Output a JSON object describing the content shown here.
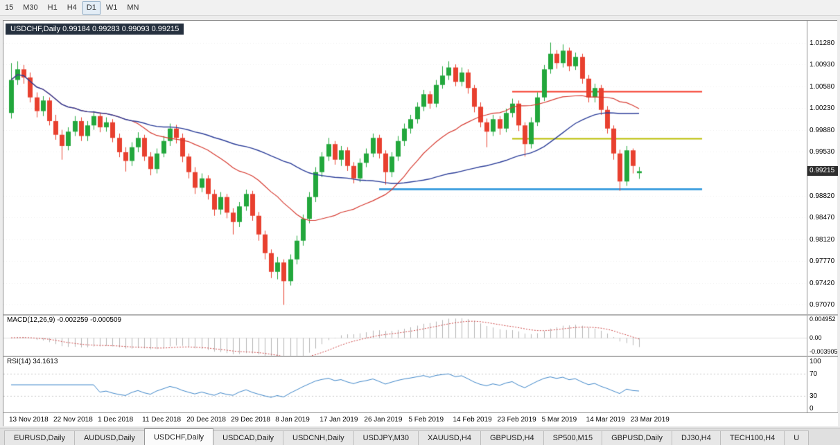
{
  "toolbar": {
    "timeframes": [
      {
        "label": "15",
        "active": false
      },
      {
        "label": "M30",
        "active": false
      },
      {
        "label": "H1",
        "active": false
      },
      {
        "label": "H4",
        "active": false
      },
      {
        "label": "D1",
        "active": true
      },
      {
        "label": "W1",
        "active": false
      },
      {
        "label": "MN",
        "active": false
      }
    ]
  },
  "chart": {
    "title": "USDCHF,Daily  0.99184 0.99283 0.99093 0.99215",
    "price_badge": "0.99215",
    "price_axis": [
      "1.01280",
      "1.00930",
      "1.00580",
      "1.00230",
      "0.99880",
      "0.99530",
      "0.98820",
      "0.98470",
      "0.98120",
      "0.97770",
      "0.97420",
      "0.97070"
    ]
  },
  "macd": {
    "label": "MACD(12,26,9) -0.002259 -0.000509",
    "values": [
      "-0.002259",
      "-0.000509"
    ],
    "axis": [
      {
        "label": "0.004952",
        "value": 0.004952
      },
      {
        "label": "0.00",
        "value": 0
      },
      {
        "label": "-0.003905",
        "value": -0.0039
      }
    ]
  },
  "rsi": {
    "label": "RSI(14) 34.1613",
    "value": "34.1613",
    "axis": [
      {
        "label": "100",
        "value": 100
      },
      {
        "label": "70",
        "value": 70
      },
      {
        "label": "30",
        "value": 30
      },
      {
        "label": "0",
        "value": 0
      }
    ]
  },
  "time_axis": [
    "13 Nov 2018",
    "22 Nov 2018",
    "1 Dec 2018",
    "11 Dec 2018",
    "20 Dec 2018",
    "29 Dec 2018",
    "8 Jan 2019",
    "17 Jan 2019",
    "26 Jan 2019",
    "5 Feb 2019",
    "14 Feb 2019",
    "23 Feb 2019",
    "5 Mar 2019",
    "14 Mar 2019",
    "23 Mar 2019"
  ],
  "tabs": [
    {
      "label": "EURUSD,Daily",
      "active": false
    },
    {
      "label": "AUDUSD,Daily",
      "active": false
    },
    {
      "label": "USDCHF,Daily",
      "active": true
    },
    {
      "label": "USDCAD,Daily",
      "active": false
    },
    {
      "label": "USDCNH,Daily",
      "active": false
    },
    {
      "label": "USDJPY,M30",
      "active": false
    },
    {
      "label": "XAUUSD,H4",
      "active": false
    },
    {
      "label": "GBPUSD,H4",
      "active": false
    },
    {
      "label": "SP500,M15",
      "active": false
    },
    {
      "label": "GBPUSD,Daily",
      "active": false
    },
    {
      "label": "DJ30,H4",
      "active": false
    },
    {
      "label": "TECH100,H4",
      "active": false
    },
    {
      "label": "U",
      "active": false
    }
  ],
  "chart_data": {
    "type": "candlestick",
    "symbol": "USDCHF",
    "timeframe": "Daily",
    "price_range": [
      0.9692,
      1.0163
    ],
    "date_labels_every": 7,
    "candles": [
      [
        1.0015,
        1.0095,
        1.0006,
        1.0068
      ],
      [
        1.0068,
        1.0098,
        1.006,
        1.0085
      ],
      [
        1.0085,
        1.0092,
        1.0062,
        1.0072
      ],
      [
        1.0072,
        1.008,
        1.0032,
        1.004
      ],
      [
        1.004,
        1.0048,
        1.0008,
        1.0018
      ],
      [
        1.0018,
        1.0042,
        1.001,
        1.0035
      ],
      [
        1.0035,
        1.004,
        0.9995,
        1.0002
      ],
      [
        1.0002,
        1.0012,
        0.9972,
        0.998
      ],
      [
        0.998,
        0.9988,
        0.994,
        0.9962
      ],
      [
        0.9962,
        0.9992,
        0.9955,
        0.9985
      ],
      [
        0.9985,
        1.001,
        0.9978,
        1.0002
      ],
      [
        1.0002,
        1.0008,
        0.997,
        0.9978
      ],
      [
        0.9978,
        1.0002,
        0.997,
        0.9995
      ],
      [
        0.9995,
        1.0018,
        0.9988,
        1.001
      ],
      [
        1.001,
        1.0016,
        0.9984,
        0.9992
      ],
      [
        0.9992,
        1.0008,
        0.9985,
        1.0
      ],
      [
        1.0,
        1.0005,
        0.9968,
        0.9975
      ],
      [
        0.9975,
        0.9982,
        0.9944,
        0.9952
      ],
      [
        0.9952,
        0.996,
        0.9921,
        0.9938
      ],
      [
        0.9938,
        0.9968,
        0.993,
        0.996
      ],
      [
        0.996,
        0.9984,
        0.9952,
        0.9975
      ],
      [
        0.9975,
        0.998,
        0.9938,
        0.9945
      ],
      [
        0.9945,
        0.9952,
        0.9915,
        0.9925
      ],
      [
        0.9925,
        0.9958,
        0.9918,
        0.995
      ],
      [
        0.995,
        0.9978,
        0.9944,
        0.997
      ],
      [
        0.997,
        0.9998,
        0.9962,
        0.999
      ],
      [
        0.999,
        0.9996,
        0.9966,
        0.9975
      ],
      [
        0.9975,
        0.9982,
        0.9936,
        0.9945
      ],
      [
        0.9945,
        0.995,
        0.991,
        0.992
      ],
      [
        0.992,
        0.9928,
        0.9885,
        0.9895
      ],
      [
        0.9895,
        0.9918,
        0.9888,
        0.991
      ],
      [
        0.991,
        0.9915,
        0.9876,
        0.9885
      ],
      [
        0.9885,
        0.9892,
        0.985,
        0.986
      ],
      [
        0.986,
        0.9888,
        0.9852,
        0.988
      ],
      [
        0.988,
        0.9885,
        0.9846,
        0.9855
      ],
      [
        0.9855,
        0.9862,
        0.982,
        0.984
      ],
      [
        0.984,
        0.9872,
        0.9832,
        0.9865
      ],
      [
        0.9865,
        0.9892,
        0.9858,
        0.9885
      ],
      [
        0.9885,
        0.989,
        0.9842,
        0.985
      ],
      [
        0.985,
        0.9856,
        0.981,
        0.982
      ],
      [
        0.982,
        0.9826,
        0.978,
        0.979
      ],
      [
        0.979,
        0.9796,
        0.975,
        0.976
      ],
      [
        0.976,
        0.9784,
        0.9748,
        0.9775
      ],
      [
        0.9775,
        0.978,
        0.9707,
        0.9745
      ],
      [
        0.9745,
        0.9788,
        0.9738,
        0.978
      ],
      [
        0.978,
        0.9818,
        0.9772,
        0.981
      ],
      [
        0.981,
        0.9852,
        0.9802,
        0.9845
      ],
      [
        0.9845,
        0.9888,
        0.9838,
        0.988
      ],
      [
        0.988,
        0.9928,
        0.9872,
        0.992
      ],
      [
        0.992,
        0.9952,
        0.9912,
        0.9945
      ],
      [
        0.9945,
        0.9975,
        0.9938,
        0.9965
      ],
      [
        0.9965,
        0.997,
        0.9932,
        0.994
      ],
      [
        0.994,
        0.9962,
        0.993,
        0.9955
      ],
      [
        0.9955,
        0.996,
        0.9922,
        0.993
      ],
      [
        0.993,
        0.9936,
        0.9902,
        0.991
      ],
      [
        0.991,
        0.9942,
        0.9904,
        0.9935
      ],
      [
        0.9935,
        0.9958,
        0.9928,
        0.995
      ],
      [
        0.995,
        0.9982,
        0.9944,
        0.9975
      ],
      [
        0.9975,
        0.998,
        0.9942,
        0.995
      ],
      [
        0.995,
        0.9955,
        0.99,
        0.992
      ],
      [
        0.992,
        0.9952,
        0.9912,
        0.9945
      ],
      [
        0.9945,
        0.9978,
        0.9938,
        0.997
      ],
      [
        0.997,
        0.9998,
        0.9962,
        0.999
      ],
      [
        0.999,
        1.0012,
        0.9982,
        1.0005
      ],
      [
        1.0005,
        1.0032,
        0.9998,
        1.0025
      ],
      [
        1.0025,
        1.0052,
        1.0018,
        1.0045
      ],
      [
        1.0045,
        1.005,
        1.0022,
        1.003
      ],
      [
        1.003,
        1.0068,
        1.0024,
        1.006
      ],
      [
        1.006,
        1.009,
        1.0054,
        1.0075
      ],
      [
        1.0075,
        1.0098,
        1.0068,
        1.0088
      ],
      [
        1.0088,
        1.0093,
        1.0058,
        1.0065
      ],
      [
        1.0065,
        1.0088,
        1.0058,
        1.008
      ],
      [
        1.008,
        1.0085,
        1.0046,
        1.0055
      ],
      [
        1.0055,
        1.006,
        1.0016,
        1.0025
      ],
      [
        1.0025,
        1.0032,
        0.9992,
        1.0
      ],
      [
        1.0,
        1.0006,
        0.996,
        0.9985
      ],
      [
        0.9985,
        1.0012,
        0.9978,
        1.0005
      ],
      [
        1.0005,
        1.001,
        0.998,
        0.999
      ],
      [
        0.999,
        1.0022,
        0.9984,
        1.0015
      ],
      [
        1.0015,
        1.0038,
        1.0008,
        1.003
      ],
      [
        1.003,
        1.0035,
        0.9986,
        0.9995
      ],
      [
        0.9995,
        1.0,
        0.9945,
        0.9965
      ],
      [
        0.9965,
        1.0008,
        0.9958,
        1.0
      ],
      [
        1.0,
        1.0048,
        0.9994,
        1.004
      ],
      [
        1.004,
        1.0092,
        1.0034,
        1.0085
      ],
      [
        1.0085,
        1.0128,
        1.0078,
        1.011
      ],
      [
        1.011,
        1.0116,
        1.0086,
        1.0095
      ],
      [
        1.0095,
        1.0125,
        1.0088,
        1.0115
      ],
      [
        1.0115,
        1.012,
        1.0082,
        1.009
      ],
      [
        1.009,
        1.0112,
        1.0084,
        1.0105
      ],
      [
        1.0105,
        1.011,
        1.0062,
        1.007
      ],
      [
        1.007,
        1.0076,
        1.0032,
        1.004
      ],
      [
        1.004,
        1.0062,
        1.0032,
        1.0055
      ],
      [
        1.0055,
        1.006,
        1.0012,
        1.002
      ],
      [
        1.002,
        1.0026,
        0.9982,
        0.999
      ],
      [
        0.999,
        0.9995,
        0.994,
        0.995
      ],
      [
        0.995,
        0.9956,
        0.989,
        0.9905
      ],
      [
        0.9905,
        0.9962,
        0.9898,
        0.9955
      ],
      [
        0.9955,
        0.9958,
        0.9918,
        0.993
      ],
      [
        0.99184,
        0.99283,
        0.99093,
        0.99215
      ]
    ],
    "moving_averages": [
      {
        "period": 20,
        "color": "#d6392f",
        "width": 1.2
      },
      {
        "period": 45,
        "color": "#2c3e99",
        "width": 1.4
      }
    ],
    "h_lines": [
      {
        "price": 1.005,
        "start_index": 79,
        "color": "#f53b2a",
        "width": 2
      },
      {
        "price": 0.9974,
        "start_index": 79,
        "color": "#b9bd00",
        "width": 2
      },
      {
        "price": 0.9893,
        "start_index": 58,
        "color": "#3f9fdf",
        "width": 3
      }
    ],
    "macd_params": [
      12,
      26,
      9
    ],
    "macd_range": [
      -0.0042,
      0.0052
    ],
    "rsi_period": 14,
    "rsi_levels": [
      70,
      30
    ],
    "colors": {
      "up": "#22a73c",
      "down": "#e8402f",
      "macd_hist": "#b5b5b5",
      "macd_signal": "#cc4444",
      "rsi_line": "#3d85c8"
    }
  }
}
